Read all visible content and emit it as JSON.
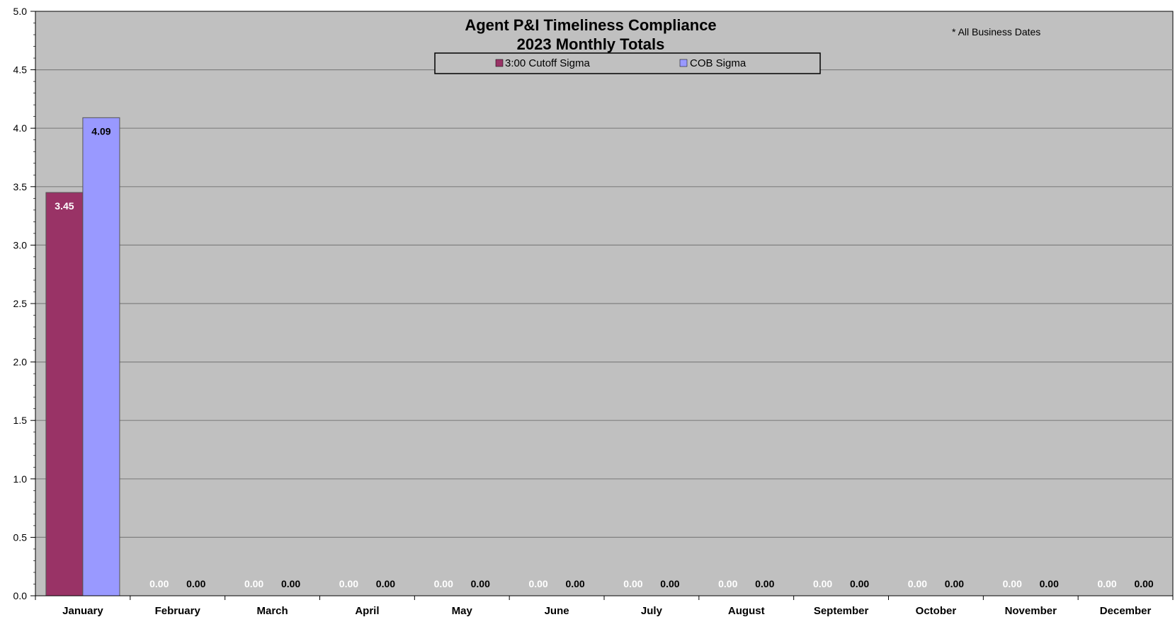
{
  "chart_data": {
    "type": "bar",
    "title": "Agent P&I Timeliness Compliance",
    "subtitle": "2023 Monthly Totals",
    "note": "* All Business Dates",
    "categories": [
      "January",
      "February",
      "March",
      "April",
      "May",
      "June",
      "July",
      "August",
      "September",
      "October",
      "November",
      "December"
    ],
    "series": [
      {
        "name": "3:00 Cutoff Sigma",
        "color": "#993366",
        "label_color": "#ffffff",
        "values": [
          3.45,
          0,
          0,
          0,
          0,
          0,
          0,
          0,
          0,
          0,
          0,
          0
        ]
      },
      {
        "name": "COB Sigma",
        "color": "#9999ff",
        "label_color": "#000000",
        "values": [
          4.09,
          0,
          0,
          0,
          0,
          0,
          0,
          0,
          0,
          0,
          0,
          0
        ]
      }
    ],
    "data_labels": [
      [
        "3.45",
        "0.00",
        "0.00",
        "0.00",
        "0.00",
        "0.00",
        "0.00",
        "0.00",
        "0.00",
        "0.00",
        "0.00",
        "0.00"
      ],
      [
        "4.09",
        "0.00",
        "0.00",
        "0.00",
        "0.00",
        "0.00",
        "0.00",
        "0.00",
        "0.00",
        "0.00",
        "0.00",
        "0.00"
      ]
    ],
    "yticks": [
      "0.0",
      "0.5",
      "1.0",
      "1.5",
      "2.0",
      "2.5",
      "3.0",
      "3.5",
      "4.0",
      "4.5",
      "5.0"
    ],
    "ylim": [
      0,
      5
    ],
    "xlabel": "",
    "ylabel": "",
    "grid": true,
    "legend_position": "top-center",
    "plot_background": "#c0c0c0",
    "gridline_color": "#808080"
  }
}
